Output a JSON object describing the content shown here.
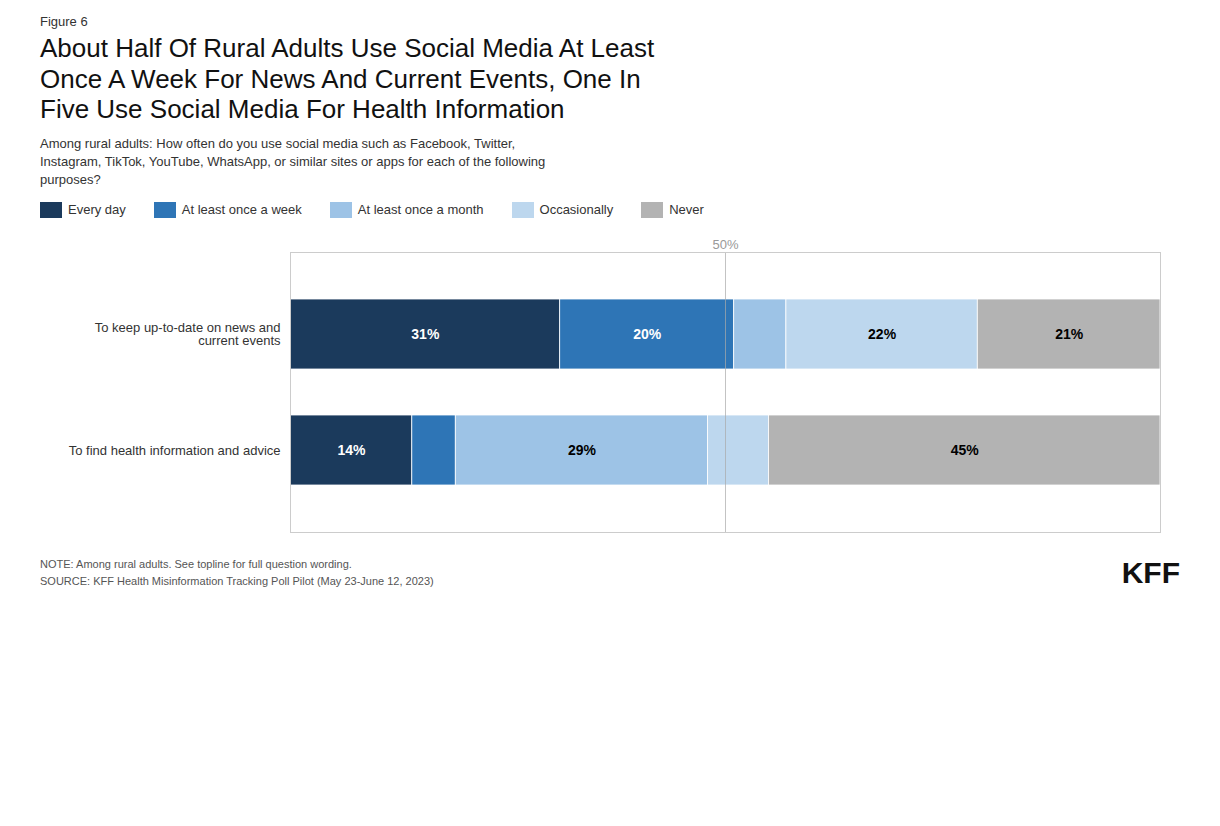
{
  "chart_data": {
    "type": "bar",
    "orientation": "horizontal",
    "stacked": true,
    "figure_label": "Figure 6",
    "title": "About Half Of Rural Adults Use Social Media At Least\nOnce A Week For News And Current Events, One In\nFive Use Social Media For Health Information",
    "subtitle": "Among rural adults: How often do you use social media such as Facebook, Twitter,\nInstagram, TikTok, YouTube, WhatsApp, or similar sites or apps for each of the following\npurposes?",
    "categories": [
      "To keep up-to-date on news and\ncurrent events",
      "To find health information and advice"
    ],
    "series": [
      {
        "name": "Every day",
        "color": "#1b3a5c",
        "values": [
          31,
          14
        ],
        "value_labels": [
          "31%",
          "14%"
        ]
      },
      {
        "name": "At least once a week",
        "color": "#2e75b6",
        "values": [
          20,
          5
        ],
        "value_labels": [
          "20%",
          null
        ]
      },
      {
        "name": "At least once a month",
        "color": "#9dc3e6",
        "values": [
          6,
          29
        ],
        "value_labels": [
          null,
          "29%"
        ]
      },
      {
        "name": "Occasionally",
        "color": "#bdd7ee",
        "values": [
          22,
          7
        ],
        "value_labels": [
          "22%",
          null
        ]
      },
      {
        "name": "Never",
        "color": "#b3b3b3",
        "values": [
          21,
          45
        ],
        "value_labels": [
          "21%",
          "45%"
        ]
      }
    ],
    "xlim": [
      0,
      100
    ],
    "data_labels": true,
    "tick_labels": "y",
    "grid": false,
    "annotations": [
      {
        "x": 50,
        "text": "50%"
      }
    ],
    "notes": [
      "NOTE: Among rural adults. See topline for full question wording.",
      "SOURCE: KFF Health Misinformation Tracking Poll Pilot (May 23-June 12, 2023)"
    ],
    "logo_text": "KFF"
  }
}
